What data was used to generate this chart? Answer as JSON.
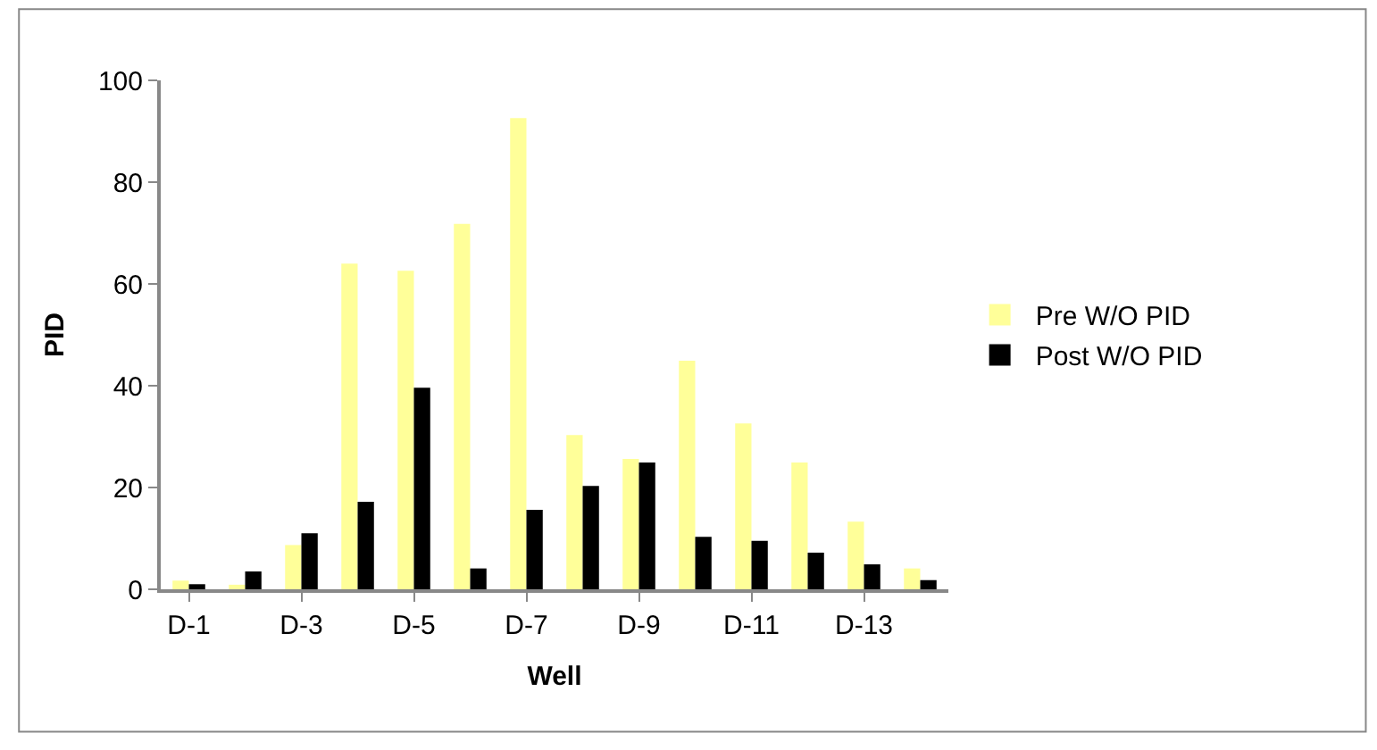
{
  "chart_data": {
    "type": "bar",
    "xlabel": "Well",
    "ylabel": "PID",
    "categories": [
      "D-1",
      null,
      "D-3",
      null,
      "D-5",
      null,
      "D-7",
      null,
      "D-9",
      null,
      "D-11",
      null,
      "D-13",
      null
    ],
    "series": [
      {
        "name": "Pre W/O PID",
        "color": "#ffff99",
        "values": [
          1.7,
          0.9,
          8.7,
          64,
          62.6,
          71.8,
          92.6,
          30.3,
          25.6,
          44.9,
          32.6,
          24.9,
          13.3,
          4.1
        ]
      },
      {
        "name": "Post W/O PID",
        "color": "#000000",
        "values": [
          1.0,
          3.5,
          11,
          17.2,
          39.6,
          4.1,
          15.6,
          20.3,
          24.9,
          10.3,
          9.5,
          7.2,
          4.9,
          1.8
        ]
      }
    ],
    "ylim": [
      0,
      100
    ],
    "yticks": [
      0,
      20,
      40,
      60,
      80,
      100
    ],
    "legend": "right"
  }
}
